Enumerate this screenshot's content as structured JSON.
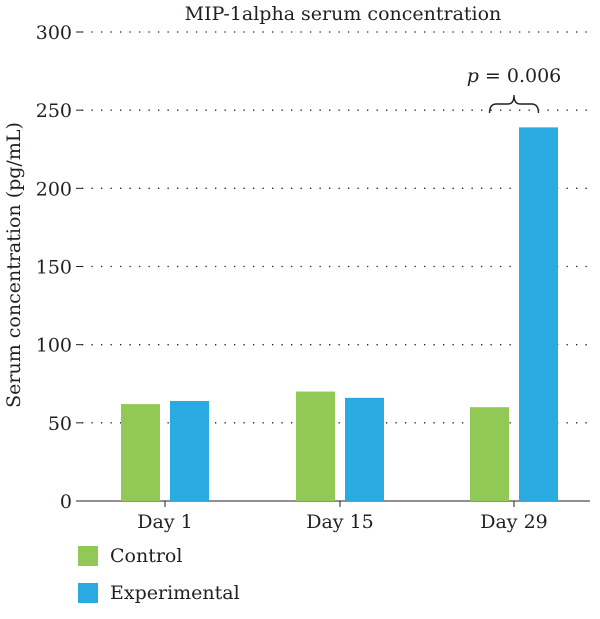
{
  "chart_data": {
    "type": "bar",
    "title": "MIP-1alpha serum concentration",
    "xlabel": "",
    "ylabel": "Serum concentration (pg/mL)",
    "ylim": [
      0,
      300
    ],
    "yticks": [
      0,
      50,
      100,
      150,
      200,
      250,
      300
    ],
    "categories": [
      "Day 1",
      "Day 15",
      "Day 29"
    ],
    "grid": "dotted-horizontal",
    "legend_position": "bottom-left",
    "series": [
      {
        "name": "Control",
        "color": "#92c956",
        "values": [
          62,
          70,
          60
        ]
      },
      {
        "name": "Experimental",
        "color": "#29abe2",
        "values": [
          64,
          66,
          239
        ]
      }
    ],
    "annotations": [
      {
        "category": "Day 29",
        "p_label": "p",
        "value_label": " = 0.006"
      }
    ]
  }
}
